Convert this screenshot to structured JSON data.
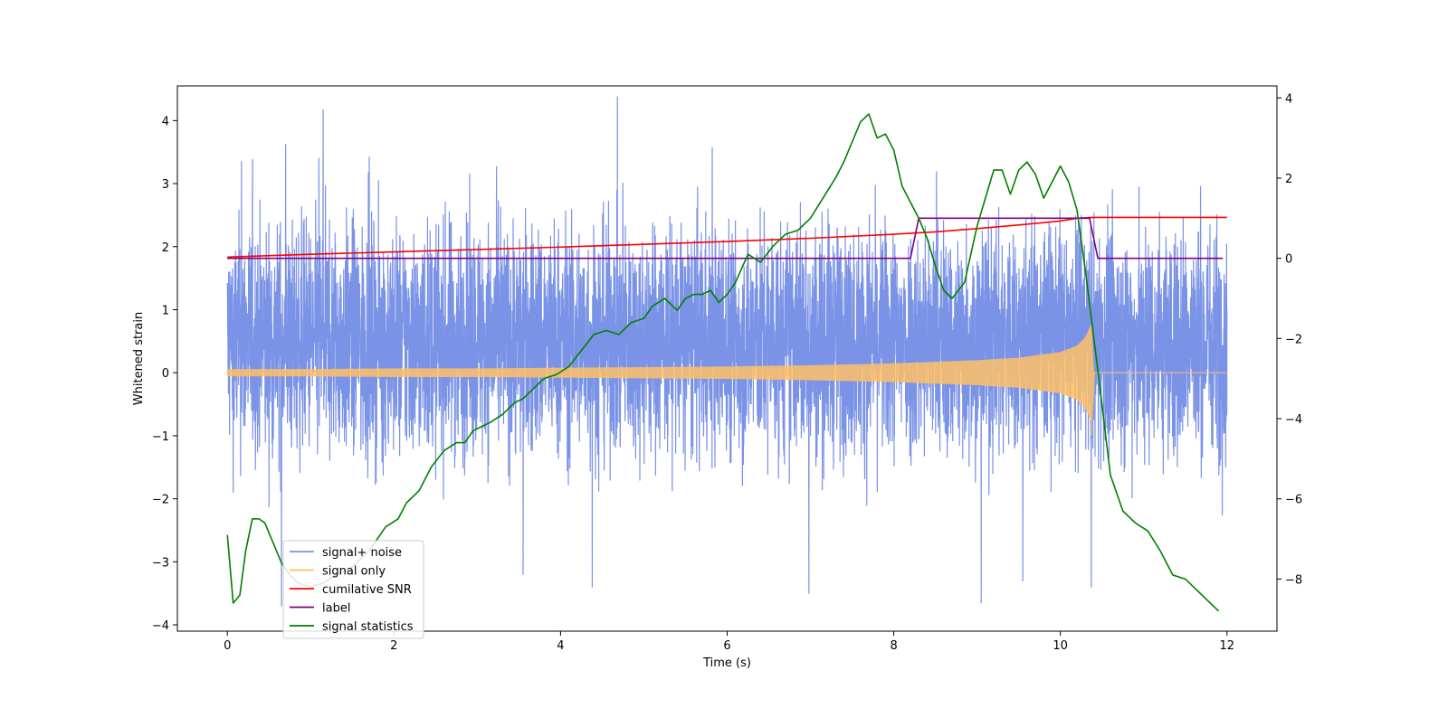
{
  "chart_data": {
    "type": "line",
    "title": "",
    "xlabel": "Time (s)",
    "ylabel": "Whitened strain",
    "y2label": "",
    "xlim": [
      -0.6,
      12.6
    ],
    "ylim": [
      -4.1,
      4.55
    ],
    "y2lim": [
      -9.3,
      4.3
    ],
    "x_ticks": [
      0,
      2,
      4,
      6,
      8,
      10,
      12
    ],
    "x_tick_labels": [
      "0",
      "2",
      "4",
      "6",
      "8",
      "10",
      "12"
    ],
    "y_ticks": [
      -4,
      -3,
      -2,
      -1,
      0,
      1,
      2,
      3,
      4
    ],
    "y_tick_labels": [
      "−4",
      "−3",
      "−2",
      "−1",
      "0",
      "1",
      "2",
      "3",
      "4"
    ],
    "y2_ticks": [
      -8,
      -6,
      -4,
      -2,
      0,
      2,
      4
    ],
    "y2_tick_labels": [
      "−8",
      "−6",
      "−4",
      "−2",
      "0",
      "2",
      "4"
    ],
    "legend_position": "bottom-left",
    "series": [
      {
        "name": "signal+ noise",
        "axis": "left",
        "color": "#7b93e6",
        "kind": "noise_band",
        "x_range": [
          0,
          12
        ],
        "typical_range": [
          -1.4,
          2.4
        ],
        "peaks": [
          [
            0.17,
            3.35
          ],
          [
            0.7,
            3.62
          ],
          [
            1.15,
            4.17
          ],
          [
            1.1,
            3.4
          ],
          [
            5.82,
            3.57
          ],
          [
            3.55,
            -3.2
          ],
          [
            6.98,
            -3.5
          ],
          [
            9.05,
            -3.65
          ],
          [
            10.37,
            -3.4
          ],
          [
            0.65,
            -3.7
          ],
          [
            9.55,
            -3.3
          ],
          [
            4.38,
            -3.4
          ]
        ]
      },
      {
        "name": "signal only",
        "axis": "left",
        "color": "#ffbf66",
        "kind": "chirp",
        "x": [
          0,
          1,
          2,
          3,
          4,
          5,
          6,
          7,
          8,
          9,
          9.5,
          10,
          10.2,
          10.3,
          10.37,
          10.4
        ],
        "envelope": [
          0.05,
          0.05,
          0.06,
          0.06,
          0.07,
          0.08,
          0.09,
          0.11,
          0.14,
          0.19,
          0.23,
          0.32,
          0.42,
          0.55,
          0.75,
          0.0
        ]
      },
      {
        "name": "cumilative SNR",
        "axis": "right",
        "color": "#ff0000",
        "x": [
          0,
          1,
          2,
          3,
          4,
          5,
          6,
          7,
          8,
          8.5,
          9,
          9.5,
          10,
          10.2,
          10.4,
          12
        ],
        "values": [
          0.03,
          0.1,
          0.16,
          0.22,
          0.28,
          0.35,
          0.42,
          0.5,
          0.6,
          0.66,
          0.74,
          0.83,
          0.93,
          1.0,
          1.02,
          1.02
        ]
      },
      {
        "name": "label",
        "axis": "right",
        "color": "#800080",
        "x": [
          0,
          8.2,
          8.3,
          10.35,
          10.45,
          11.95
        ],
        "values": [
          0,
          0,
          1,
          1,
          0,
          0
        ]
      },
      {
        "name": "signal statistics",
        "axis": "right",
        "color": "#008000",
        "x": [
          0,
          0.07,
          0.15,
          0.22,
          0.3,
          0.38,
          0.45,
          0.55,
          0.65,
          0.75,
          0.85,
          1.0,
          1.15,
          1.3,
          1.5,
          1.7,
          1.9,
          2.05,
          2.15,
          2.3,
          2.45,
          2.6,
          2.75,
          2.85,
          2.95,
          3.05,
          3.15,
          3.3,
          3.45,
          3.55,
          3.65,
          3.8,
          3.95,
          4.1,
          4.25,
          4.4,
          4.55,
          4.7,
          4.85,
          5.0,
          5.1,
          5.25,
          5.4,
          5.5,
          5.6,
          5.7,
          5.8,
          5.9,
          6.0,
          6.1,
          6.25,
          6.4,
          6.55,
          6.7,
          6.85,
          7.0,
          7.15,
          7.3,
          7.4,
          7.5,
          7.6,
          7.7,
          7.8,
          7.9,
          8.0,
          8.1,
          8.2,
          8.3,
          8.4,
          8.5,
          8.6,
          8.7,
          8.85,
          9.0,
          9.1,
          9.2,
          9.3,
          9.4,
          9.5,
          9.6,
          9.7,
          9.8,
          9.9,
          10.0,
          10.1,
          10.2,
          10.3,
          10.45,
          10.6,
          10.75,
          10.9,
          11.05,
          11.2,
          11.35,
          11.5,
          11.65,
          11.8,
          11.9
        ],
        "values": [
          -6.9,
          -8.6,
          -8.4,
          -7.3,
          -6.5,
          -6.5,
          -6.6,
          -7.1,
          -7.6,
          -7.9,
          -8.1,
          -8.2,
          -8.1,
          -7.9,
          -7.7,
          -7.3,
          -6.7,
          -6.5,
          -6.1,
          -5.8,
          -5.2,
          -4.8,
          -4.6,
          -4.6,
          -4.3,
          -4.2,
          -4.1,
          -3.9,
          -3.6,
          -3.5,
          -3.3,
          -3.0,
          -2.9,
          -2.7,
          -2.3,
          -1.9,
          -1.8,
          -1.9,
          -1.6,
          -1.5,
          -1.2,
          -1.0,
          -1.3,
          -1.0,
          -0.9,
          -0.9,
          -0.8,
          -1.1,
          -0.9,
          -0.6,
          0.1,
          -0.1,
          0.3,
          0.6,
          0.7,
          1.0,
          1.5,
          2.0,
          2.4,
          2.9,
          3.4,
          3.6,
          3.0,
          3.1,
          2.7,
          1.8,
          1.4,
          1.0,
          0.5,
          -0.2,
          -0.8,
          -1.0,
          -0.6,
          0.8,
          1.5,
          2.2,
          2.2,
          1.6,
          2.2,
          2.4,
          2.1,
          1.5,
          1.9,
          2.3,
          1.9,
          1.2,
          -0.3,
          -2.8,
          -5.4,
          -6.3,
          -6.6,
          -6.8,
          -7.3,
          -7.9,
          -8.0,
          -8.3,
          -8.6,
          -8.8
        ]
      }
    ]
  }
}
